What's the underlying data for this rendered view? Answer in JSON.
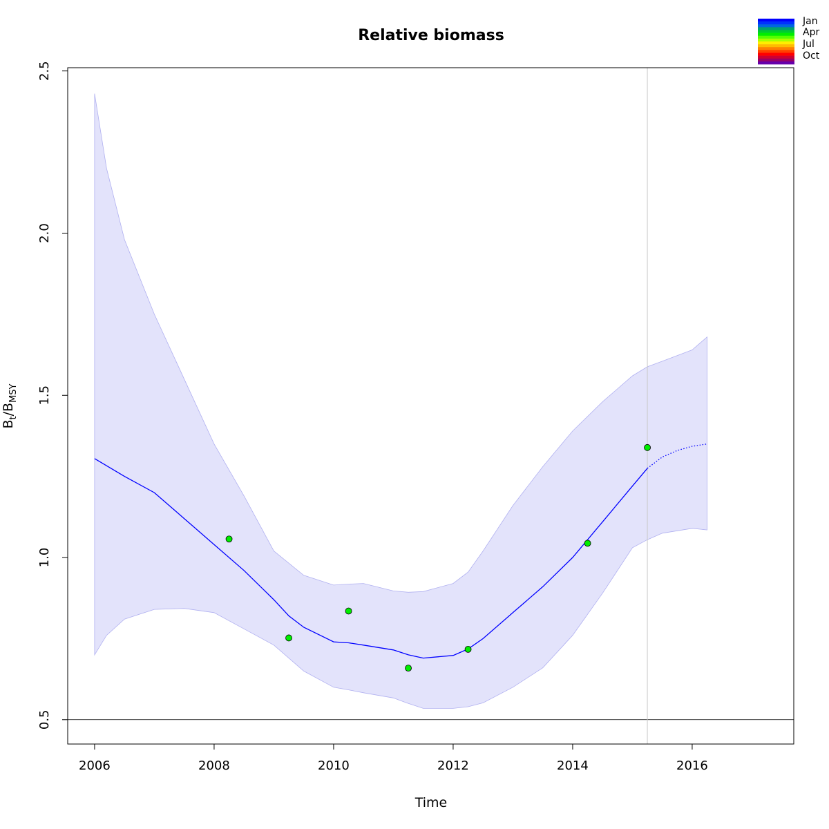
{
  "chart_data": {
    "type": "line",
    "title": "Relative biomass",
    "xlabel": "Time",
    "ylabel": {
      "main": "B",
      "sub1": "t",
      "sep": "/B",
      "sub2": "MSY"
    },
    "xlim": [
      2005.55,
      2017.7
    ],
    "ylim": [
      0.425,
      2.51
    ],
    "x_ticks": [
      2006,
      2008,
      2010,
      2012,
      2014,
      2016
    ],
    "x_tick_labels": [
      "2006",
      "2008",
      "2010",
      "2012",
      "2014",
      "2016"
    ],
    "y_ticks": [
      0.5,
      1.0,
      1.5,
      2.0,
      2.5
    ],
    "y_tick_labels": [
      "0.5",
      "1.0",
      "1.5",
      "2.0",
      "2.5"
    ],
    "grid": false,
    "reference_line_y": 0.5,
    "vertical_line_x": 2015.25,
    "series": [
      {
        "role": "estimate",
        "color": "#0000ff",
        "style": "solid",
        "x": [
          2006.0,
          2006.5,
          2007.0,
          2007.5,
          2008.0,
          2008.5,
          2009.0,
          2009.25,
          2009.5,
          2010.0,
          2010.25,
          2010.5,
          2011.0,
          2011.25,
          2011.5,
          2012.0,
          2012.25,
          2012.5,
          2013.0,
          2013.5,
          2014.0,
          2014.5,
          2015.0,
          2015.25
        ],
        "values": [
          1.305,
          1.25,
          1.2,
          1.12,
          1.04,
          0.96,
          0.87,
          0.82,
          0.785,
          0.74,
          0.737,
          0.73,
          0.715,
          0.7,
          0.69,
          0.698,
          0.718,
          0.75,
          0.83,
          0.91,
          1.0,
          1.11,
          1.22,
          1.275
        ]
      },
      {
        "role": "prediction",
        "color": "#0000ff",
        "style": "dotted",
        "x": [
          2015.25,
          2015.5,
          2015.75,
          2016.0,
          2016.25
        ],
        "values": [
          1.275,
          1.31,
          1.33,
          1.343,
          1.35
        ]
      }
    ],
    "confidence_band": {
      "color": "#e3e3fb",
      "edge_color": "#b0b0f0",
      "x": [
        2006.0,
        2006.2,
        2006.5,
        2007.0,
        2007.5,
        2008.0,
        2008.5,
        2009.0,
        2009.5,
        2010.0,
        2010.25,
        2010.5,
        2011.0,
        2011.25,
        2011.5,
        2012.0,
        2012.25,
        2012.5,
        2013.0,
        2013.5,
        2014.0,
        2014.5,
        2015.0,
        2015.25,
        2015.5,
        2016.0,
        2016.25
      ],
      "lower": [
        0.7,
        0.76,
        0.81,
        0.84,
        0.843,
        0.83,
        0.78,
        0.73,
        0.65,
        0.6,
        0.592,
        0.583,
        0.567,
        0.55,
        0.535,
        0.535,
        0.54,
        0.552,
        0.6,
        0.66,
        0.76,
        0.89,
        1.03,
        1.055,
        1.075,
        1.09,
        1.085
      ],
      "upper": [
        2.43,
        2.2,
        1.98,
        1.75,
        1.55,
        1.35,
        1.19,
        1.02,
        0.945,
        0.915,
        0.918,
        0.92,
        0.897,
        0.893,
        0.895,
        0.92,
        0.955,
        1.02,
        1.16,
        1.28,
        1.39,
        1.48,
        1.56,
        1.588,
        1.605,
        1.64,
        1.68
      ]
    },
    "observations": {
      "color": "#00ee00",
      "x": [
        2008.25,
        2009.25,
        2010.25,
        2011.25,
        2012.25,
        2014.25,
        2015.25
      ],
      "values": [
        1.057,
        0.752,
        0.835,
        0.659,
        0.717,
        1.044,
        1.339
      ]
    },
    "legend": {
      "placement": "top-right",
      "labels": [
        "Jan",
        "Apr",
        "Jul",
        "Oct"
      ],
      "colors": [
        "#0000ff",
        "#0030ff",
        "#0066e0",
        "#00a070",
        "#00cc30",
        "#00ee00",
        "#55ff00",
        "#aaff00",
        "#ffee00",
        "#ffbb00",
        "#ff8000",
        "#ff4000",
        "#ff0000",
        "#cc0033",
        "#990066",
        "#6600aa"
      ]
    }
  }
}
